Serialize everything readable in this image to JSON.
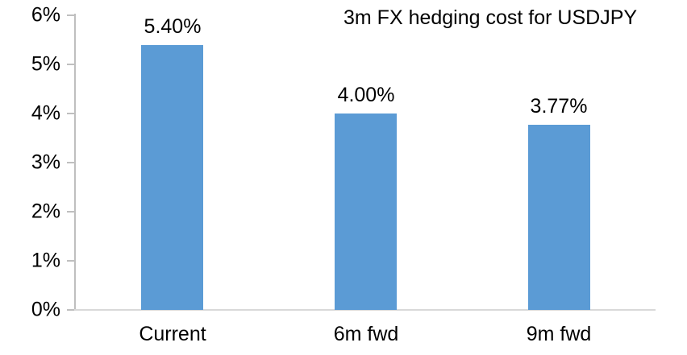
{
  "chart_data": {
    "type": "bar",
    "title": "3m FX hedging cost for USDJPY",
    "categories": [
      "Current",
      "6m fwd",
      "9m fwd"
    ],
    "values": [
      5.4,
      4.0,
      3.77
    ],
    "value_labels": [
      "5.40%",
      "4.00%",
      "3.77%"
    ],
    "y_tick_labels": [
      "0%",
      "1%",
      "2%",
      "3%",
      "4%",
      "5%",
      "6%"
    ],
    "y_tick_values": [
      0,
      1,
      2,
      3,
      4,
      5,
      6
    ],
    "ylim": [
      0,
      6
    ],
    "xlabel": "",
    "ylabel": "",
    "grid": false,
    "legend_position": "none",
    "colors": {
      "bar": "#5B9BD5",
      "axis_line": "#BFBFBF",
      "baseline": "#D9D9D9",
      "text": "#000000",
      "background": "#FFFFFF"
    }
  }
}
